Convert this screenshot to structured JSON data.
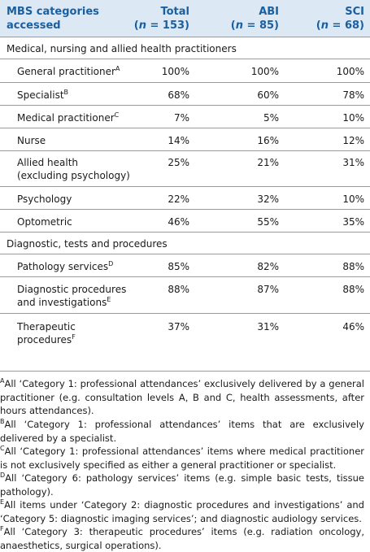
{
  "table": {
    "headers": {
      "category_line1": "MBS categories",
      "category_line2": "accessed",
      "total_label": "Total",
      "total_n_prefix": "(",
      "total_n_italic": "n",
      "total_n_rest": " = 153)",
      "abi_label": "ABI",
      "abi_n_prefix": "(",
      "abi_n_italic": "n",
      "abi_n_rest": " = 85)",
      "sci_label": "SCI",
      "sci_n_prefix": "(",
      "sci_n_italic": "n",
      "sci_n_rest": " = 68)"
    },
    "sections": [
      {
        "title": "Medical, nursing and allied health practitioners",
        "rows": [
          {
            "line1": "General practitioner",
            "line2": "",
            "sup": "A",
            "total": "100%",
            "abi": "100%",
            "sci": "100%"
          },
          {
            "line1": "Specialist",
            "line2": "",
            "sup": "B",
            "total": "68%",
            "abi": "60%",
            "sci": "78%"
          },
          {
            "line1": "Medical practitioner",
            "line2": "",
            "sup": "C",
            "total": "7%",
            "abi": "5%",
            "sci": "10%"
          },
          {
            "line1": "Nurse",
            "line2": "",
            "sup": "",
            "total": "14%",
            "abi": "16%",
            "sci": "12%"
          },
          {
            "line1": "Allied health",
            "line2": "(excluding psychology)",
            "sup": "",
            "total": "25%",
            "abi": "21%",
            "sci": "31%"
          },
          {
            "line1": "Psychology",
            "line2": "",
            "sup": "",
            "total": "22%",
            "abi": "32%",
            "sci": "10%"
          },
          {
            "line1": "Optometric",
            "line2": "",
            "sup": "",
            "total": "46%",
            "abi": "55%",
            "sci": "35%"
          }
        ]
      },
      {
        "title": "Diagnostic, tests and procedures",
        "rows": [
          {
            "line1": "Pathology services",
            "line2": "",
            "sup": "D",
            "total": "85%",
            "abi": "82%",
            "sci": "88%"
          },
          {
            "line1": "Diagnostic procedures",
            "line2": "and investigations",
            "sup": "E",
            "total": "88%",
            "abi": "87%",
            "sci": "88%"
          },
          {
            "line1": "Therapeutic",
            "line2": "procedures",
            "sup": "F",
            "total": "37%",
            "abi": "31%",
            "sci": "46%"
          }
        ]
      }
    ]
  },
  "footnotes": [
    {
      "mark": "A",
      "text": "All ‘Category 1: professional attendances’ exclusively delivered by a general practitioner (e.g. consultation levels A, B and C, health assessments, after hours attendances)."
    },
    {
      "mark": "B",
      "text": "All ‘Category 1: professional attendances’ items that are exclusively delivered by a specialist."
    },
    {
      "mark": "C",
      "text": "All ‘Category 1: professional attendances’ items where medical practitioner is not exclusively specified as either a general practitioner or specialist."
    },
    {
      "mark": "D",
      "text": "All ‘Category 6: pathology services’ items (e.g. simple basic tests, tissue pathology)."
    },
    {
      "mark": "E",
      "text": "All items under ‘Category 2: diagnostic procedures and investigations’ and ‘Category 5: diagnostic imaging services’; and diagnostic audiology services."
    },
    {
      "mark": "F",
      "text": "All ‘Category 3: therapeutic procedures’ items (e.g. radiation oncology, anaesthetics, surgical operations)."
    }
  ]
}
